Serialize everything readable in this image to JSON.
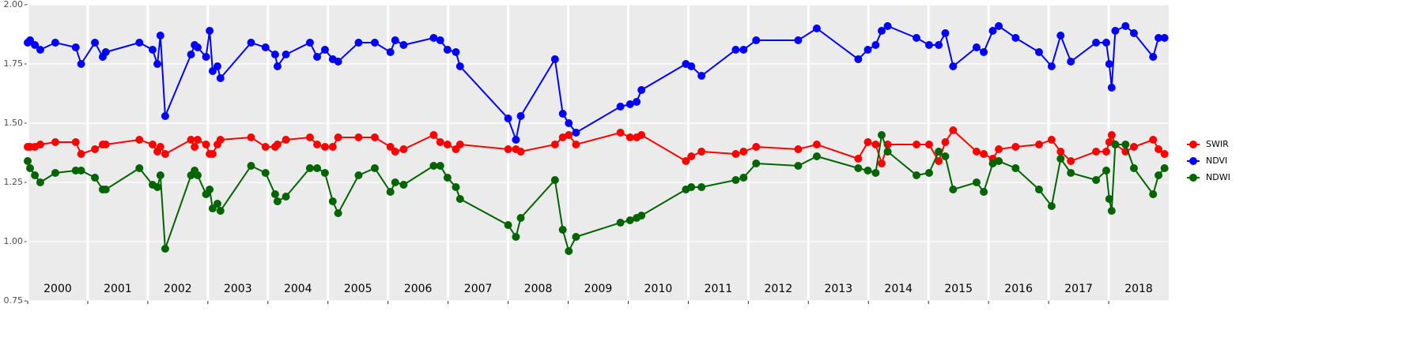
{
  "chart_data": {
    "type": "line",
    "x": [
      2000.0,
      2000.04,
      2000.12,
      2000.21,
      2000.46,
      2000.8,
      2000.89,
      2001.12,
      2001.25,
      2001.3,
      2001.86,
      2002.08,
      2002.16,
      2002.21,
      2002.29,
      2002.72,
      2002.78,
      2002.83,
      2002.97,
      2003.03,
      2003.08,
      2003.16,
      2003.21,
      2003.72,
      2003.96,
      2004.12,
      2004.16,
      2004.3,
      2004.7,
      2004.82,
      2004.95,
      2005.08,
      2005.17,
      2005.51,
      2005.78,
      2006.04,
      2006.12,
      2006.26,
      2006.76,
      2006.87,
      2006.99,
      2007.13,
      2007.2,
      2008.0,
      2008.13,
      2008.21,
      2008.78,
      2008.91,
      2009.01,
      2009.13,
      2009.87,
      2010.03,
      2010.14,
      2010.22,
      2010.96,
      2011.05,
      2011.22,
      2011.79,
      2011.92,
      2012.13,
      2012.83,
      2013.14,
      2013.83,
      2013.99,
      2014.12,
      2014.22,
      2014.32,
      2014.8,
      2015.01,
      2015.17,
      2015.28,
      2015.41,
      2015.8,
      2015.92,
      2016.07,
      2016.17,
      2016.45,
      2016.84,
      2017.05,
      2017.2,
      2017.37,
      2017.79,
      2017.96,
      2018.01,
      2018.05,
      2018.11,
      2018.28,
      2018.42,
      2018.74,
      2018.83,
      2018.93
    ],
    "series": [
      {
        "name": "SWIR",
        "color": "#ff0000",
        "values": [
          1.4,
          1.4,
          1.4,
          1.41,
          1.42,
          1.42,
          1.37,
          1.39,
          1.41,
          1.41,
          1.43,
          1.41,
          1.38,
          1.4,
          1.37,
          1.43,
          1.4,
          1.43,
          1.41,
          1.37,
          1.37,
          1.41,
          1.43,
          1.44,
          1.4,
          1.4,
          1.41,
          1.43,
          1.44,
          1.41,
          1.4,
          1.4,
          1.44,
          1.44,
          1.44,
          1.4,
          1.38,
          1.39,
          1.45,
          1.42,
          1.41,
          1.39,
          1.41,
          1.39,
          1.39,
          1.38,
          1.41,
          1.44,
          1.45,
          1.41,
          1.46,
          1.44,
          1.44,
          1.45,
          1.34,
          1.36,
          1.38,
          1.37,
          1.38,
          1.4,
          1.39,
          1.41,
          1.35,
          1.42,
          1.41,
          1.33,
          1.41,
          1.41,
          1.41,
          1.34,
          1.42,
          1.47,
          1.38,
          1.37,
          1.35,
          1.39,
          1.4,
          1.41,
          1.43,
          1.38,
          1.34,
          1.38,
          1.38,
          1.42,
          1.45,
          1.41,
          1.38,
          1.4,
          1.43,
          1.39,
          1.37
        ]
      },
      {
        "name": "NDVI",
        "color": "#0000ff",
        "values": [
          1.84,
          1.85,
          1.83,
          1.81,
          1.84,
          1.82,
          1.75,
          1.84,
          1.78,
          1.8,
          1.84,
          1.81,
          1.75,
          1.87,
          1.53,
          1.79,
          1.83,
          1.82,
          1.78,
          1.89,
          1.72,
          1.74,
          1.69,
          1.84,
          1.82,
          1.79,
          1.74,
          1.79,
          1.84,
          1.78,
          1.81,
          1.77,
          1.76,
          1.84,
          1.84,
          1.8,
          1.85,
          1.83,
          1.86,
          1.85,
          1.81,
          1.8,
          1.74,
          1.52,
          1.43,
          1.53,
          1.77,
          1.54,
          1.5,
          1.46,
          1.57,
          1.58,
          1.59,
          1.64,
          1.75,
          1.74,
          1.7,
          1.81,
          1.81,
          1.85,
          1.85,
          1.9,
          1.77,
          1.81,
          1.83,
          1.89,
          1.91,
          1.86,
          1.83,
          1.83,
          1.88,
          1.74,
          1.82,
          1.8,
          1.89,
          1.91,
          1.86,
          1.8,
          1.74,
          1.87,
          1.76,
          1.84,
          1.84,
          1.75,
          1.65,
          1.89,
          1.91,
          1.88,
          1.78,
          1.86,
          1.86
        ]
      },
      {
        "name": "NDWI",
        "color": "#006400",
        "values": [
          1.34,
          1.31,
          1.28,
          1.25,
          1.29,
          1.3,
          1.3,
          1.27,
          1.22,
          1.22,
          1.31,
          1.24,
          1.23,
          1.28,
          0.97,
          1.28,
          1.3,
          1.28,
          1.2,
          1.22,
          1.14,
          1.16,
          1.13,
          1.32,
          1.29,
          1.2,
          1.17,
          1.19,
          1.31,
          1.31,
          1.29,
          1.17,
          1.12,
          1.28,
          1.31,
          1.21,
          1.25,
          1.24,
          1.32,
          1.32,
          1.27,
          1.23,
          1.18,
          1.07,
          1.02,
          1.1,
          1.26,
          1.05,
          0.96,
          1.02,
          1.08,
          1.09,
          1.1,
          1.11,
          1.22,
          1.23,
          1.23,
          1.26,
          1.27,
          1.33,
          1.32,
          1.36,
          1.31,
          1.3,
          1.29,
          1.45,
          1.38,
          1.28,
          1.29,
          1.38,
          1.36,
          1.22,
          1.25,
          1.21,
          1.33,
          1.34,
          1.31,
          1.22,
          1.15,
          1.35,
          1.29,
          1.26,
          1.3,
          1.18,
          1.13,
          1.41,
          1.41,
          1.31,
          1.2,
          1.28,
          1.31
        ]
      }
    ],
    "xlim": [
      2000,
      2019
    ],
    "xticks": [
      2000,
      2001,
      2002,
      2003,
      2004,
      2005,
      2006,
      2007,
      2008,
      2009,
      2010,
      2011,
      2012,
      2013,
      2014,
      2015,
      2016,
      2017,
      2018
    ],
    "ylim": [
      0.75,
      2.0
    ],
    "yticks": [
      {
        "value": 0.75,
        "label": "0.75"
      },
      {
        "value": 1.0,
        "label": "1.00"
      },
      {
        "value": 1.25,
        "label": "1.25"
      },
      {
        "value": 1.5,
        "label": "1.50"
      },
      {
        "value": 1.75,
        "label": "1.75"
      },
      {
        "value": 2.0,
        "label": "2.00"
      }
    ],
    "grid": true,
    "legend": "right"
  }
}
